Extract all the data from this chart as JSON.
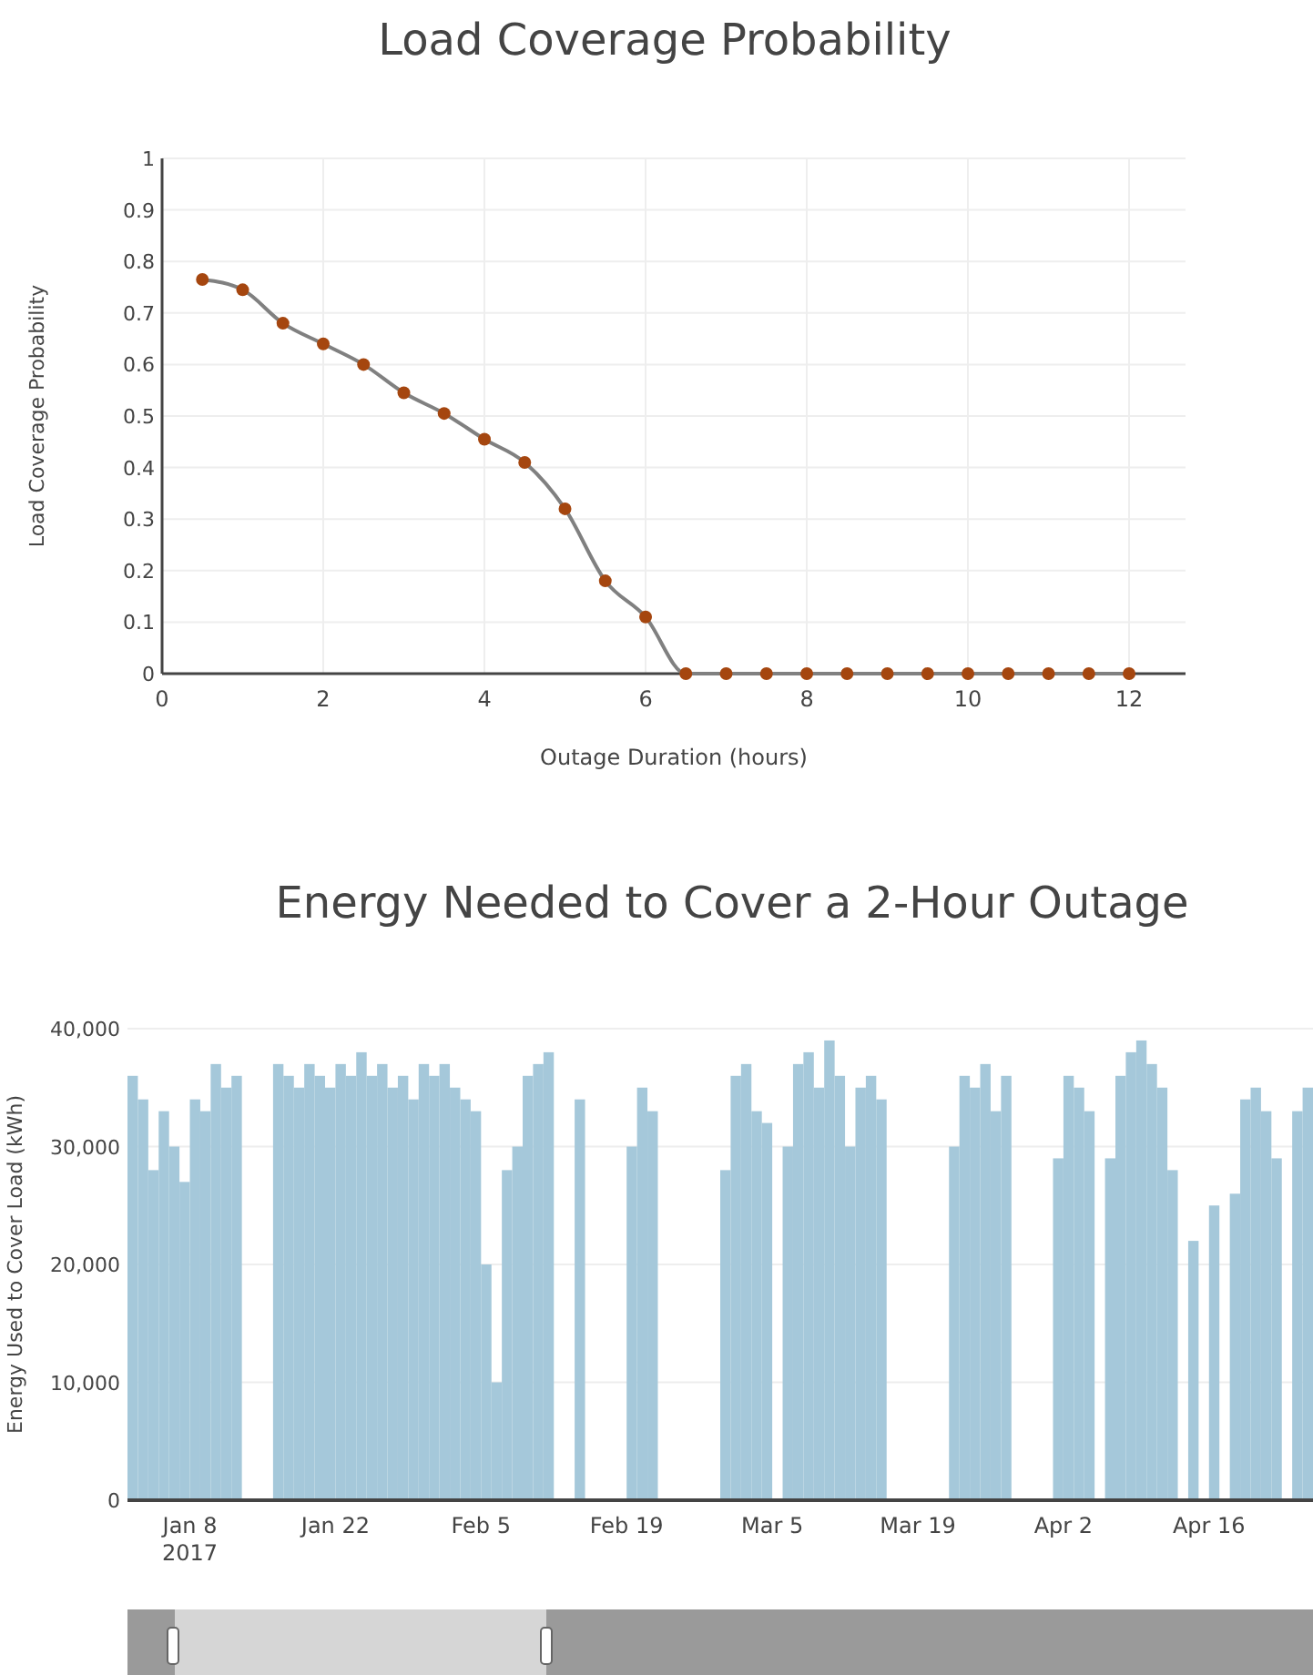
{
  "chart_data": [
    {
      "type": "line",
      "title": "Load Coverage Probability",
      "xlabel": "Outage Duration (hours)",
      "ylabel": "Load Coverage Probability",
      "x": [
        0.5,
        1,
        1.5,
        2,
        2.5,
        3,
        3.5,
        4,
        4.5,
        5,
        5.5,
        6,
        6.5,
        7,
        7.5,
        8,
        8.5,
        9,
        9.5,
        10,
        10.5,
        11,
        11.5,
        12
      ],
      "series": [
        {
          "color": "#a5460f",
          "values": [
            0.765,
            0.745,
            0.68,
            0.64,
            0.6,
            0.545,
            0.505,
            0.455,
            0.41,
            0.32,
            0.18,
            0.11,
            0,
            0,
            0,
            0,
            0,
            0,
            0,
            0,
            0,
            0,
            0,
            0
          ]
        }
      ],
      "xlim": [
        0,
        12.7
      ],
      "ylim": [
        0,
        1
      ],
      "xticks": [
        0,
        2,
        4,
        6,
        8,
        10,
        12
      ],
      "yticks": [
        0,
        0.1,
        0.2,
        0.3,
        0.4,
        0.5,
        0.6,
        0.7,
        0.8,
        0.9,
        1
      ],
      "grid": true,
      "marker": "circle",
      "line_style": "solid"
    },
    {
      "type": "bar",
      "title": "Energy Needed to Cover a 2-Hour Outage",
      "ylabel": "Energy Used to Cover Load (kWh)",
      "x": [
        "2017-01-02",
        "2017-01-03",
        "2017-01-04",
        "2017-01-05",
        "2017-01-06",
        "2017-01-07",
        "2017-01-08",
        "2017-01-09",
        "2017-01-10",
        "2017-01-11",
        "2017-01-12",
        "2017-01-16",
        "2017-01-17",
        "2017-01-18",
        "2017-01-19",
        "2017-01-20",
        "2017-01-21",
        "2017-01-22",
        "2017-01-23",
        "2017-01-24",
        "2017-01-25",
        "2017-01-26",
        "2017-01-27",
        "2017-01-28",
        "2017-01-29",
        "2017-01-30",
        "2017-01-31",
        "2017-02-01",
        "2017-02-02",
        "2017-02-03",
        "2017-02-04",
        "2017-02-05",
        "2017-02-06",
        "2017-02-07",
        "2017-02-08",
        "2017-02-09",
        "2017-02-10",
        "2017-02-11",
        "2017-02-14",
        "2017-02-19",
        "2017-02-20",
        "2017-02-21",
        "2017-02-28",
        "2017-03-01",
        "2017-03-02",
        "2017-03-03",
        "2017-03-04",
        "2017-03-06",
        "2017-03-07",
        "2017-03-08",
        "2017-03-09",
        "2017-03-10",
        "2017-03-11",
        "2017-03-12",
        "2017-03-13",
        "2017-03-14",
        "2017-03-15",
        "2017-03-22",
        "2017-03-23",
        "2017-03-24",
        "2017-03-25",
        "2017-03-26",
        "2017-03-27",
        "2017-04-01",
        "2017-04-02",
        "2017-04-03",
        "2017-04-04",
        "2017-04-06",
        "2017-04-07",
        "2017-04-08",
        "2017-04-09",
        "2017-04-10",
        "2017-04-11",
        "2017-04-12",
        "2017-04-14",
        "2017-04-16",
        "2017-04-18",
        "2017-04-19",
        "2017-04-20",
        "2017-04-21",
        "2017-04-22",
        "2017-04-24",
        "2017-04-25"
      ],
      "series": [
        {
          "color": "#a5c8da",
          "values": [
            36000,
            34000,
            28000,
            33000,
            30000,
            27000,
            34000,
            33000,
            37000,
            35000,
            36000,
            37000,
            36000,
            35000,
            37000,
            36000,
            35000,
            37000,
            36000,
            38000,
            36000,
            37000,
            35000,
            36000,
            34000,
            37000,
            36000,
            37000,
            35000,
            34000,
            33000,
            20000,
            10000,
            28000,
            30000,
            36000,
            37000,
            38000,
            34000,
            30000,
            35000,
            33000,
            28000,
            36000,
            37000,
            33000,
            32000,
            30000,
            37000,
            38000,
            35000,
            39000,
            36000,
            30000,
            35000,
            36000,
            34000,
            30000,
            36000,
            35000,
            37000,
            33000,
            36000,
            29000,
            36000,
            35000,
            33000,
            29000,
            36000,
            38000,
            39000,
            37000,
            35000,
            28000,
            22000,
            25000,
            26000,
            34000,
            35000,
            33000,
            29000,
            33000,
            35000
          ]
        }
      ],
      "xlim": [
        "2017-01-02",
        "2017-04-26"
      ],
      "ylim": [
        0,
        40000
      ],
      "xticks": [
        {
          "value": "2017-01-08",
          "label": "Jan 8\n2017"
        },
        {
          "value": "2017-01-22",
          "label": "Jan 22"
        },
        {
          "value": "2017-02-05",
          "label": "Feb 5"
        },
        {
          "value": "2017-02-19",
          "label": "Feb 19"
        },
        {
          "value": "2017-03-05",
          "label": "Mar 5"
        },
        {
          "value": "2017-03-19",
          "label": "Mar 19"
        },
        {
          "value": "2017-04-02",
          "label": "Apr 2"
        },
        {
          "value": "2017-04-16",
          "label": "Apr 16"
        }
      ],
      "yticks": [
        {
          "value": 0,
          "label": "0"
        },
        {
          "value": 10000,
          "label": "10,000"
        },
        {
          "value": 20000,
          "label": "20,000"
        },
        {
          "value": 30000,
          "label": "30,000"
        },
        {
          "value": 40000,
          "label": "40,000"
        }
      ],
      "grid": "y"
    }
  ]
}
